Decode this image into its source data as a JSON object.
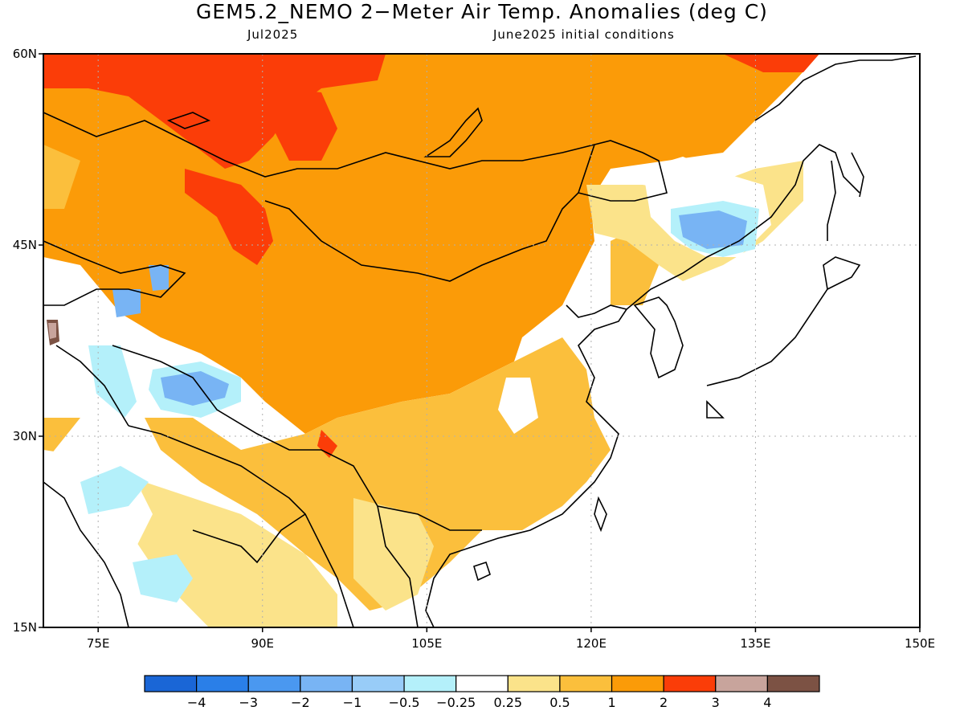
{
  "header": {
    "title": "GEM5.2_NEMO 2−Meter Air Temp. Anomalies (deg C)",
    "month": "Jul2025",
    "initial_conditions": "June2025 initial conditions"
  },
  "map": {
    "lon_range": [
      70,
      150
    ],
    "lat_range": [
      15,
      60
    ],
    "lon_ticks": [
      "75E",
      "90E",
      "105E",
      "120E",
      "135E",
      "150E"
    ],
    "lat_ticks": [
      "60N",
      "45N",
      "30N",
      "15N"
    ],
    "grid": true
  },
  "colorbar": {
    "colors": [
      "#1a66d6",
      "#2a7fe8",
      "#4a98f0",
      "#78b4f4",
      "#98ccf8",
      "#b4f0fa",
      "#ffffff",
      "#fbe38a",
      "#fbbf3c",
      "#fb9b08",
      "#fb3d08",
      "#c8a49c",
      "#7c5244"
    ],
    "labels": [
      "−4",
      "−3",
      "−2",
      "−1",
      "−0.5",
      "−0.25",
      "0.25",
      "0.5",
      "1",
      "2",
      "3",
      "4"
    ]
  }
}
